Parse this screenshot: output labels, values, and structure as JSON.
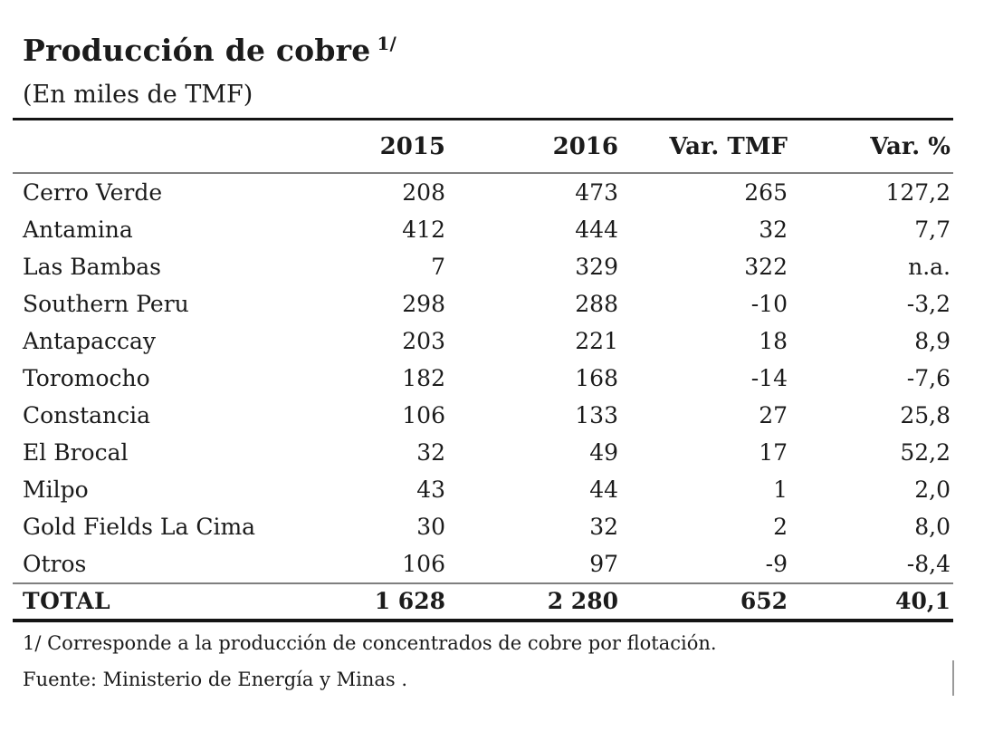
{
  "title": {
    "text": "Producción de cobre",
    "superscript": "1/"
  },
  "subtitle": "(En miles de TMF)",
  "table": {
    "columns": {
      "company": "",
      "y2015": "2015",
      "y2016": "2016",
      "var_tmf": "Var. TMF",
      "var_pct": "Var. %"
    },
    "rows": [
      {
        "company": "Cerro Verde",
        "y2015": "208",
        "y2016": "473",
        "var_tmf": "265",
        "var_pct": "127,2"
      },
      {
        "company": "Antamina",
        "y2015": "412",
        "y2016": "444",
        "var_tmf": "32",
        "var_pct": "7,7"
      },
      {
        "company": "Las Bambas",
        "y2015": "7",
        "y2016": "329",
        "var_tmf": "322",
        "var_pct": "n.a."
      },
      {
        "company": "Southern Peru",
        "y2015": "298",
        "y2016": "288",
        "var_tmf": "-10",
        "var_pct": "-3,2"
      },
      {
        "company": "Antapaccay",
        "y2015": "203",
        "y2016": "221",
        "var_tmf": "18",
        "var_pct": "8,9"
      },
      {
        "company": "Toromocho",
        "y2015": "182",
        "y2016": "168",
        "var_tmf": "-14",
        "var_pct": "-7,6"
      },
      {
        "company": "Constancia",
        "y2015": "106",
        "y2016": "133",
        "var_tmf": "27",
        "var_pct": "25,8"
      },
      {
        "company": "El Brocal",
        "y2015": "32",
        "y2016": "49",
        "var_tmf": "17",
        "var_pct": "52,2"
      },
      {
        "company": "Milpo",
        "y2015": "43",
        "y2016": "44",
        "var_tmf": "1",
        "var_pct": "2,0"
      },
      {
        "company": "Gold Fields La Cima",
        "y2015": "30",
        "y2016": "32",
        "var_tmf": "2",
        "var_pct": "8,0"
      },
      {
        "company": "Otros",
        "y2015": "106",
        "y2016": "97",
        "var_tmf": "-9",
        "var_pct": "-8,4"
      }
    ],
    "total": {
      "company": "TOTAL",
      "y2015": "1 628",
      "y2016": "2 280",
      "var_tmf": "652",
      "var_pct": "40,1"
    }
  },
  "footnote": "1/ Corresponde a la producción de concentrados de cobre por flotación.",
  "source": "Fuente: Ministerio de Energía y Minas .",
  "colors": {
    "text": "#1b1b1b",
    "rule_heavy": "#141414",
    "rule_light": "#7f7f7f"
  }
}
